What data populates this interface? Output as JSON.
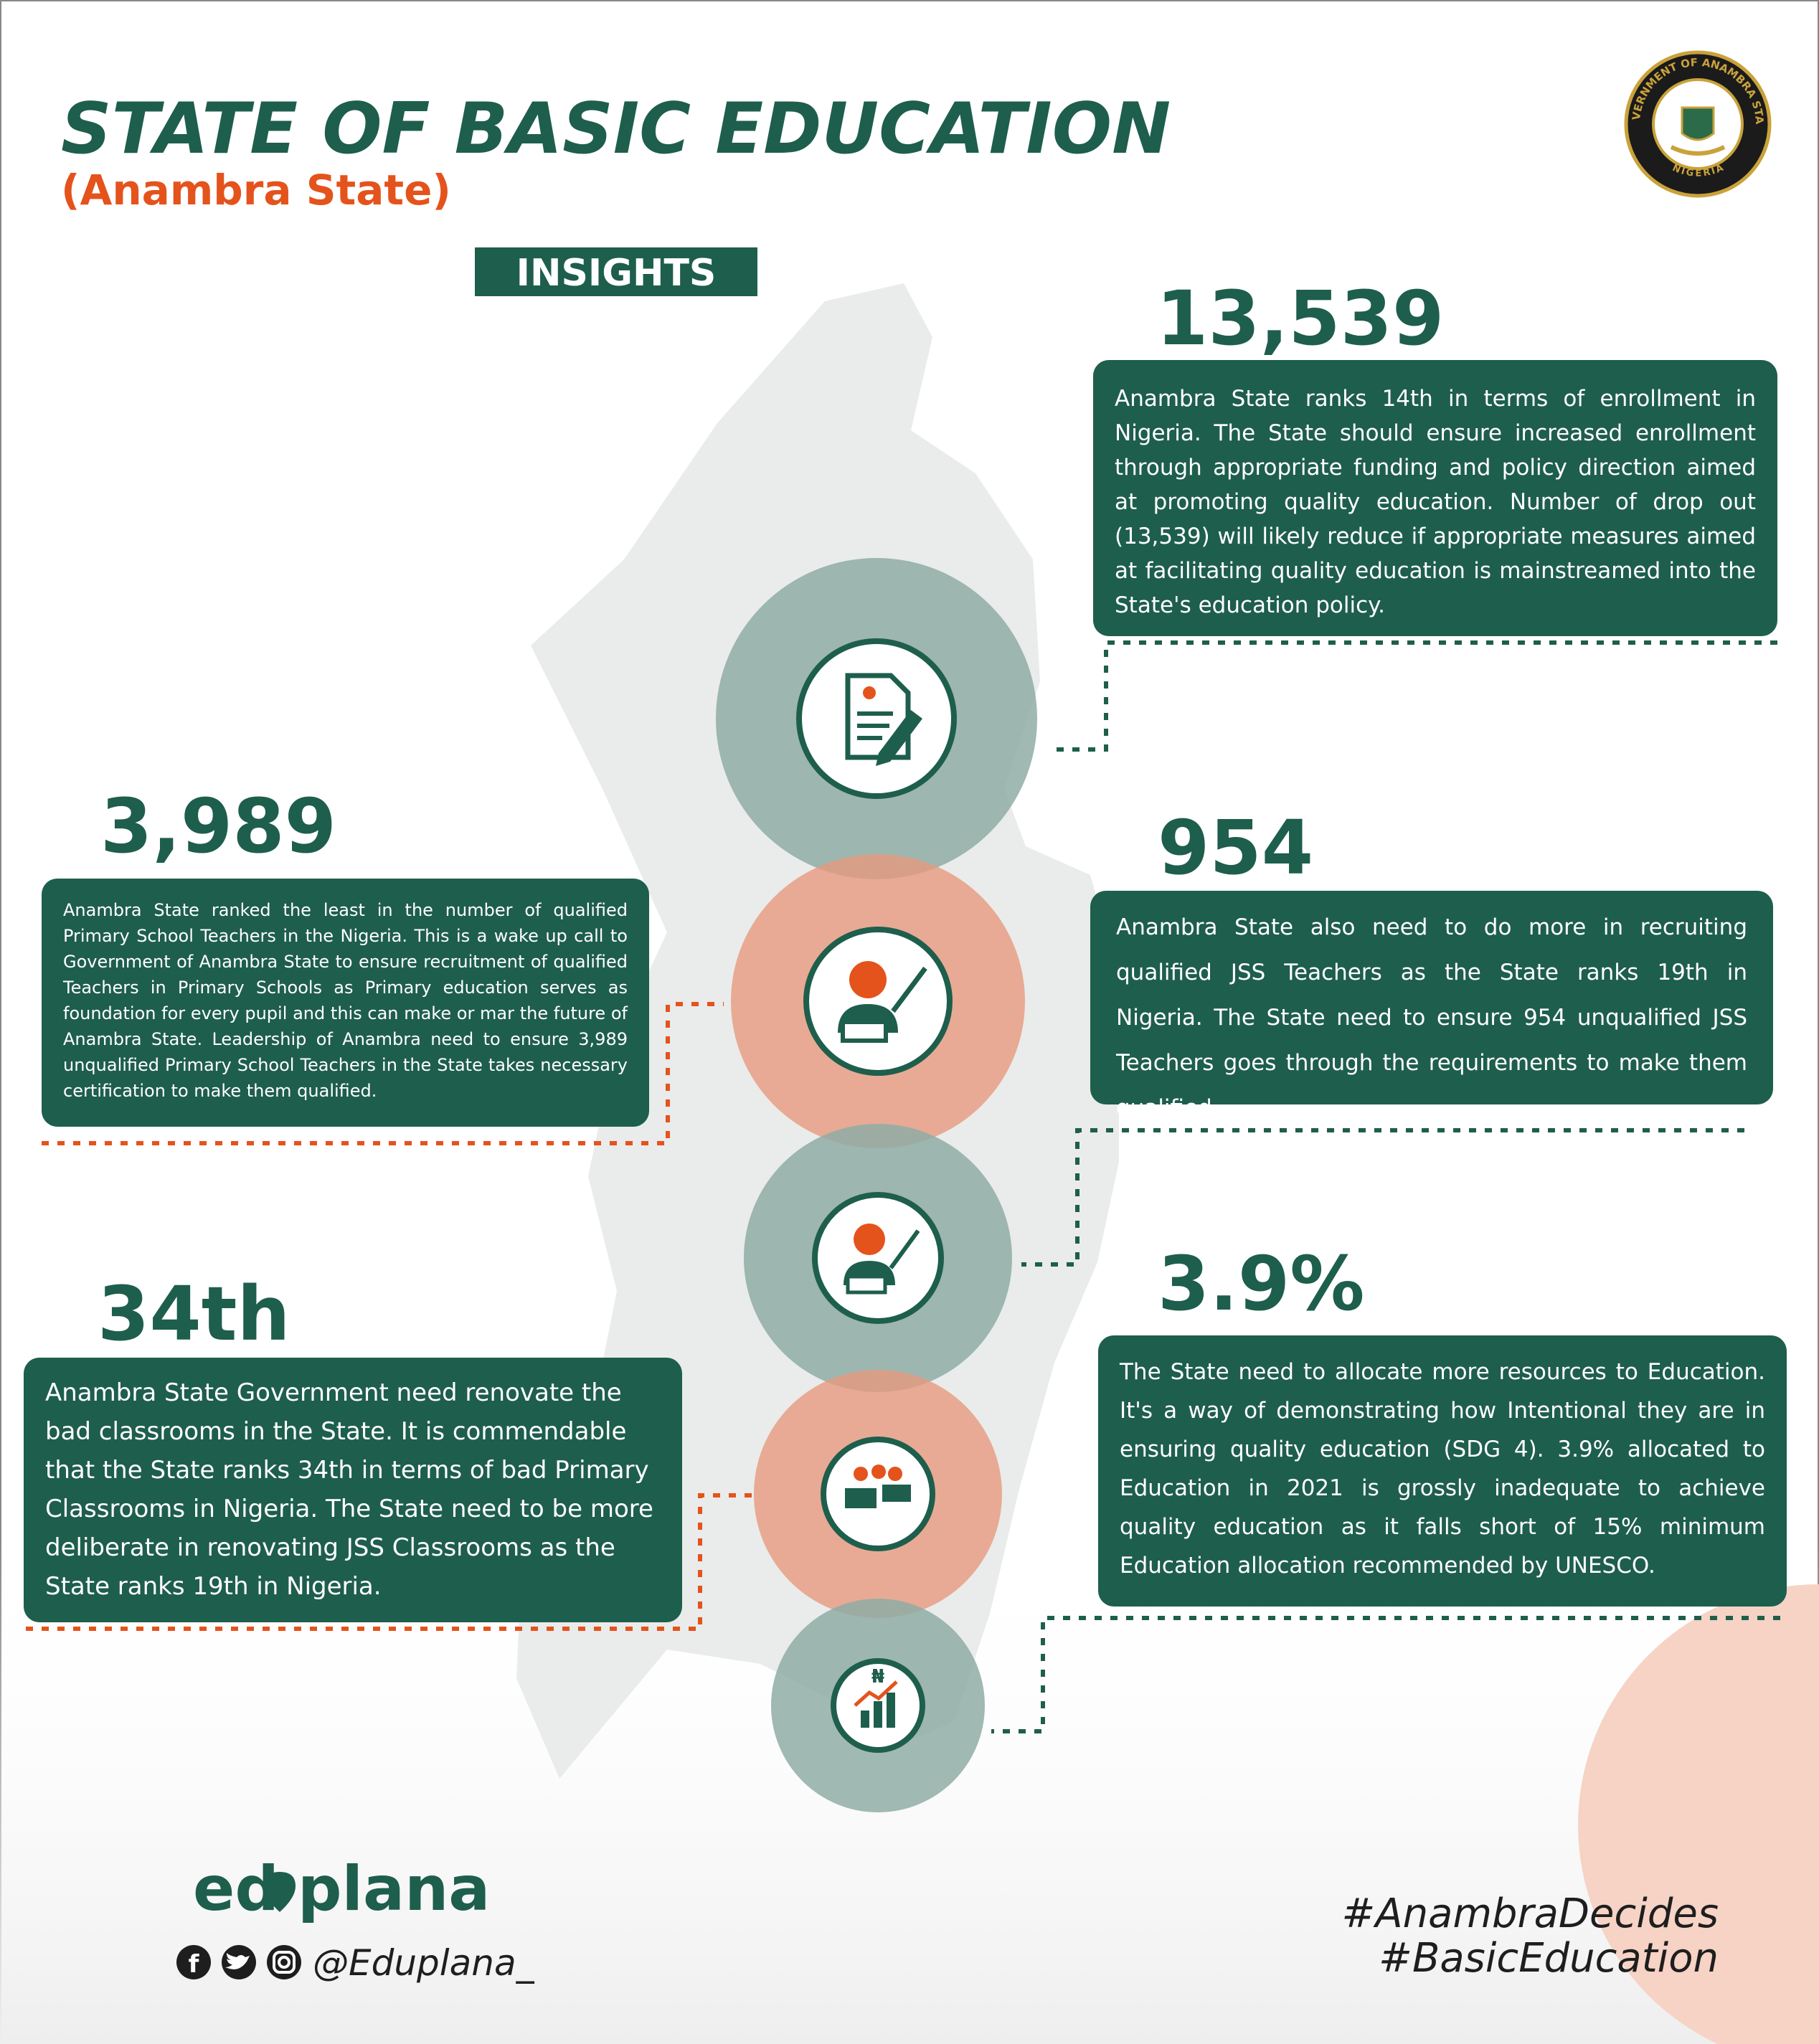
{
  "header": {
    "title": "STATE OF BASIC EDUCATION",
    "subtitle": "(Anambra State)",
    "badge": "INSIGHTS",
    "seal_top": "GOVERNMENT OF ANAMBRA STATE",
    "seal_bottom": "NIGERIA"
  },
  "insights": [
    {
      "stat": "13,539",
      "text": "Anambra State ranks 14th in terms of enrollment in Nigeria. The State should ensure increased enrollment through appropriate funding and policy direction aimed at promoting quality education. Number of drop out (13,539) will likely reduce if appropriate measures aimed at facilitating quality education is mainstreamed into the State's education policy."
    },
    {
      "stat": "3,989",
      "text": "Anambra State ranked the least in the number of qualified Primary School Teachers in the Nigeria. This is a wake up call to Government of Anambra State to ensure recruitment of qualified Teachers in Primary Schools as Primary education serves as foundation for every pupil and this can make or mar the future of Anambra State. Leadership of Anambra need to ensure 3,989 unqualified Primary School Teachers in the State takes necessary certification to make them qualified."
    },
    {
      "stat": "954",
      "text": "Anambra State also need to do more in recruiting qualified JSS Teachers as the State ranks 19th in Nigeria. The State need to ensure 954 unqualified JSS Teachers goes through the requirements to make them qualified."
    },
    {
      "stat": "34th",
      "text": "Anambra State Government need renovate the bad classrooms in the State. It is commendable that the State ranks 34th in terms of bad Primary Classrooms in Nigeria. The State need to be more deliberate in renovating JSS Classrooms as the State ranks 19th in Nigeria."
    },
    {
      "stat": "3.9%",
      "text": "The State need to allocate more resources to Education. It's a way of demonstrating how Intentional they are in ensuring quality education (SDG 4). 3.9% allocated to Education in 2021 is grossly inadequate to achieve quality education as it falls short of 15% minimum Education allocation recommended by UNESCO."
    }
  ],
  "footer": {
    "brand_left": "ed",
    "brand_right": "plana",
    "handle": "@Eduplana_",
    "hashtags": [
      "#AnambraDecides",
      "#BasicEducation"
    ]
  }
}
